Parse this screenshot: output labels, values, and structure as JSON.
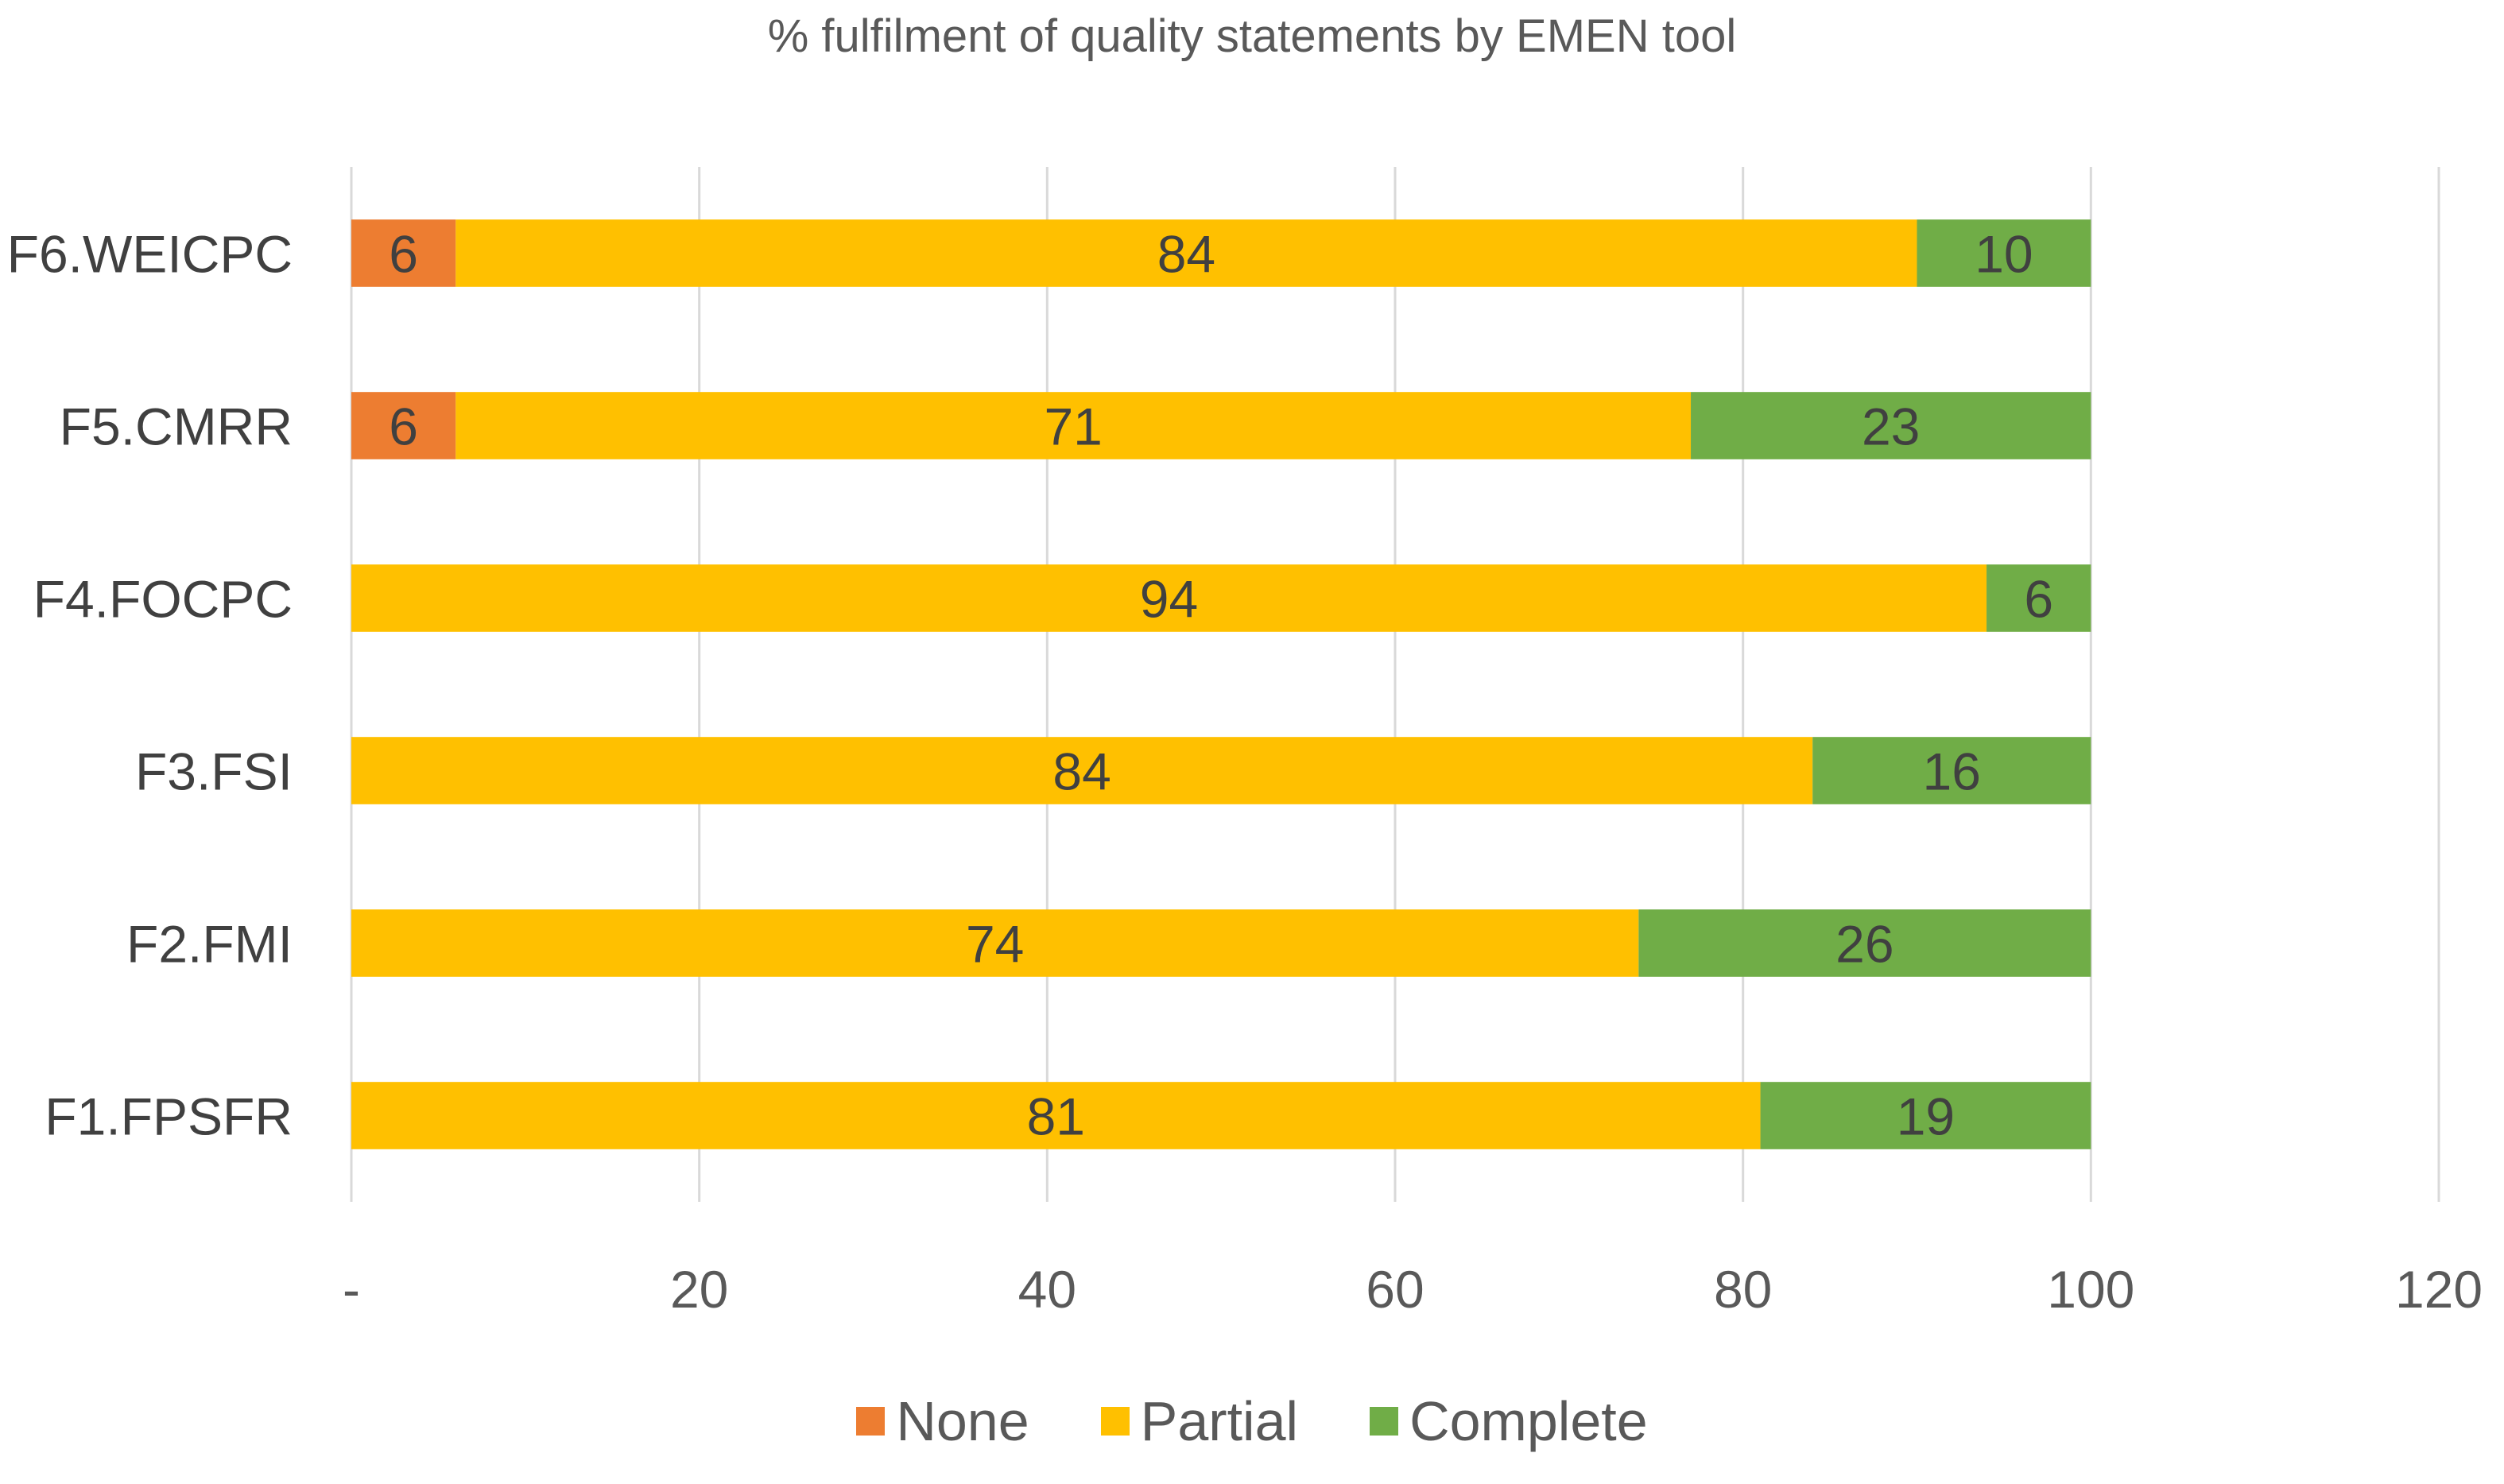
{
  "chart_data": {
    "type": "bar",
    "orientation": "horizontal",
    "stacked": true,
    "title": "% fulfilment of quality statements by EMEN tool",
    "categories": [
      "F6.WEICPC",
      "F5.CMRR",
      "F4.FOCPC",
      "F3.FSI",
      "F2.FMI",
      "F1.FPSFR"
    ],
    "series": [
      {
        "name": "None",
        "color": "#ED7D31",
        "values": [
          6,
          6,
          0,
          0,
          0,
          0
        ],
        "labels": [
          "6",
          "6",
          "-",
          "-",
          "-",
          "-"
        ]
      },
      {
        "name": "Partial",
        "color": "#FFC000",
        "values": [
          84,
          71,
          94,
          84,
          74,
          81
        ],
        "labels": [
          "84",
          "71",
          "94",
          "84",
          "74",
          "81"
        ]
      },
      {
        "name": "Complete",
        "color": "#70AD47",
        "values": [
          10,
          23,
          6,
          16,
          26,
          19
        ],
        "labels": [
          "10",
          "23",
          "6",
          "16",
          "26",
          "19"
        ]
      }
    ],
    "xlim": [
      0,
      120
    ],
    "xticks": [
      0,
      20,
      40,
      60,
      80,
      100,
      120
    ],
    "xtick_labels": [
      "-",
      "20",
      "40",
      "60",
      "80",
      "100",
      "120"
    ],
    "grid": true,
    "legend_position": "bottom"
  }
}
